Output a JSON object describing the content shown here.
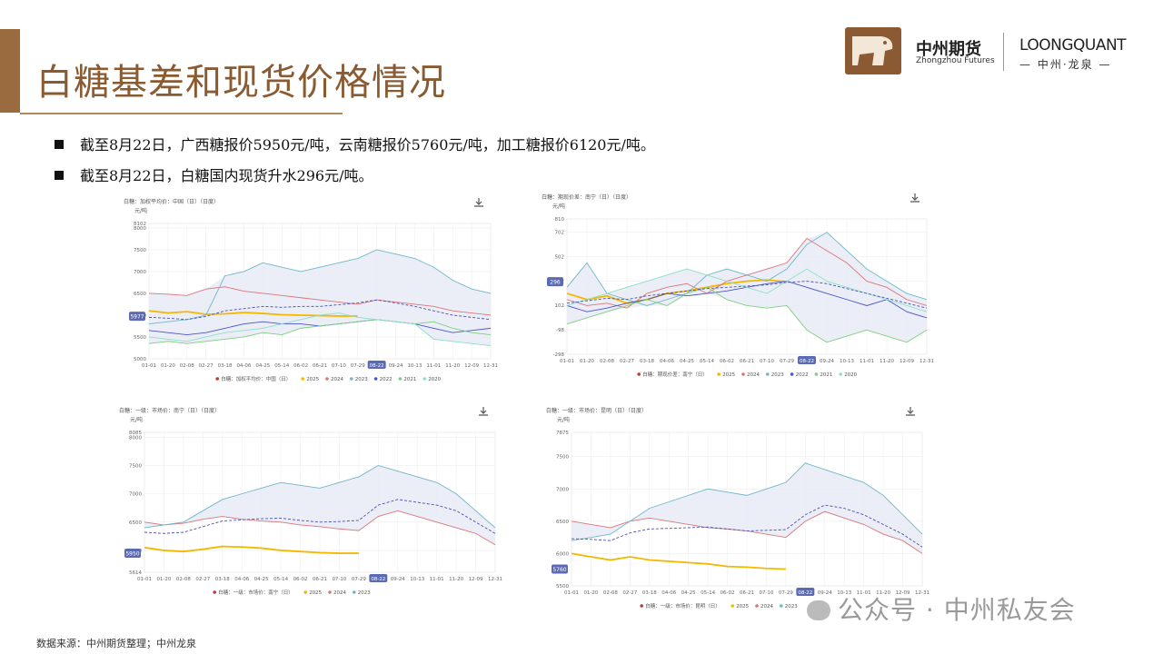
{
  "title": "白糖基差和现货价格情况",
  "logo": {
    "cn": "中州期货",
    "en": "Zhongzhou Futures",
    "lq": "LOONGQUANT",
    "lq_sub": "— 中州·龙泉 —"
  },
  "bullets": [
    "截至8月22日，广西糖报价5950元/吨，云南糖报价5760元/吨，加工糖报价6120元/吨。",
    "截至8月22日，白糖国内现货升水296元/吨。"
  ],
  "footer": "数据来源：中州期货整理；中州龙泉",
  "watermark": "公众号 · 中州私友会",
  "icons": {
    "download": "download-icon",
    "watermark": "wechat-icon",
    "logo": "cheetah-logo"
  },
  "colors": {
    "y2025": "#f5b800",
    "y2024": "#d9767a",
    "y2023": "#6fb7c9",
    "y2022": "#4a55c8",
    "y2021": "#7ccf7c",
    "y2020": "#8ce0c8",
    "band": "#e6eaf5",
    "marker": "#5b6ab5"
  },
  "chart_data": [
    {
      "type": "line",
      "title": "白糖：加权平均价：中国（日）（日度）",
      "ylabel": "元/吨",
      "ylim": [
        5000,
        8102
      ],
      "yticks": [
        5000,
        5500,
        6000,
        6500,
        7000,
        7500,
        8000,
        8102
      ],
      "xticks": [
        "01-01",
        "01-20",
        "02-08",
        "02-27",
        "03-18",
        "04-06",
        "04-25",
        "05-14",
        "06-02",
        "06-21",
        "07-10",
        "07-29",
        "08-22",
        "09-24",
        "10-13",
        "11-01",
        "11-20",
        "12-09",
        "12-31"
      ],
      "current_label": "5977",
      "current_date": "08-22",
      "legend": [
        "白糖：加权平均价：中国（日）",
        "2025",
        "2024",
        "2023",
        "2022",
        "2021",
        "2020"
      ],
      "series": [
        {
          "name": "2025",
          "values": [
            6100,
            6050,
            6080,
            6020,
            6030,
            6060,
            6040,
            6010,
            6000,
            5990,
            5980,
            5977
          ]
        },
        {
          "name": "2024",
          "values": [
            6500,
            6480,
            6450,
            6600,
            6650,
            6550,
            6500,
            6450,
            6400,
            6350,
            6300,
            6250,
            6350,
            6300,
            6250,
            6200,
            6100,
            6050,
            6000
          ]
        },
        {
          "name": "2023",
          "values": [
            5800,
            5850,
            5900,
            6000,
            6900,
            7000,
            7200,
            7100,
            7000,
            7100,
            7200,
            7300,
            7500,
            7400,
            7300,
            7100,
            6800,
            6600,
            6500
          ]
        },
        {
          "name": "2022",
          "values": [
            5650,
            5600,
            5550,
            5600,
            5700,
            5800,
            5850,
            5800,
            5800,
            5750,
            5800,
            5850,
            5900,
            5850,
            5800,
            5700,
            5600,
            5650,
            5700
          ]
        },
        {
          "name": "2021",
          "values": [
            5350,
            5400,
            5350,
            5400,
            5450,
            5500,
            5600,
            5550,
            5700,
            5750,
            5800,
            5850,
            5900,
            5850,
            5800,
            5850,
            5700,
            5600,
            5550
          ]
        },
        {
          "name": "2020",
          "values": [
            5500,
            5450,
            5400,
            5500,
            5600,
            5650,
            5700,
            5800,
            5900,
            6000,
            6050,
            5950,
            5900,
            5850,
            5800,
            5450,
            5400,
            5350,
            5300
          ]
        },
        {
          "name": "mean",
          "values": [
            5950,
            5930,
            5900,
            5970,
            6100,
            6150,
            6200,
            6180,
            6200,
            6200,
            6240,
            6280,
            6350,
            6280,
            6200,
            6100,
            6000,
            5950,
            5900
          ]
        }
      ]
    },
    {
      "type": "line",
      "title": "白糖：期现价差：南宁（日）（日度）",
      "ylabel": "元/吨",
      "ylim": [
        -298,
        810
      ],
      "yticks": [
        -298,
        -98,
        102,
        302,
        502,
        702,
        810
      ],
      "xticks": [
        "01-01",
        "01-20",
        "02-08",
        "02-27",
        "03-18",
        "04-06",
        "04-25",
        "05-14",
        "06-02",
        "06-21",
        "07-10",
        "07-29",
        "08-22",
        "09-24",
        "10-13",
        "11-01",
        "11-20",
        "12-09",
        "12-31"
      ],
      "current_label": "296",
      "current_date": "08-22",
      "legend": [
        "白糖：期现价差：南宁（日）",
        "2025",
        "2024",
        "2023",
        "2022",
        "2021",
        "2020"
      ],
      "series": [
        {
          "name": "2025",
          "values": [
            200,
            150,
            180,
            120,
            150,
            200,
            220,
            250,
            280,
            300,
            310,
            296
          ]
        },
        {
          "name": "2024",
          "values": [
            150,
            100,
            120,
            80,
            200,
            250,
            280,
            200,
            300,
            350,
            400,
            450,
            650,
            550,
            450,
            300,
            250,
            150,
            100
          ]
        },
        {
          "name": "2023",
          "values": [
            250,
            450,
            200,
            150,
            100,
            150,
            200,
            350,
            400,
            350,
            300,
            400,
            600,
            700,
            550,
            400,
            300,
            200,
            150
          ]
        },
        {
          "name": "2022",
          "values": [
            100,
            50,
            80,
            120,
            150,
            200,
            180,
            200,
            220,
            250,
            280,
            300,
            250,
            200,
            150,
            100,
            150,
            50,
            0
          ]
        },
        {
          "name": "2021",
          "values": [
            -50,
            0,
            50,
            100,
            150,
            100,
            200,
            250,
            150,
            100,
            80,
            100,
            -100,
            -200,
            -150,
            -100,
            -150,
            -200,
            -100
          ]
        },
        {
          "name": "2020",
          "values": [
            100,
            150,
            200,
            250,
            300,
            350,
            400,
            350,
            300,
            250,
            200,
            300,
            400,
            300,
            250,
            200,
            150,
            100,
            50
          ]
        },
        {
          "name": "mean",
          "values": [
            120,
            140,
            160,
            150,
            180,
            200,
            220,
            240,
            250,
            260,
            270,
            290,
            300,
            280,
            240,
            200,
            160,
            120,
            80
          ]
        }
      ]
    },
    {
      "type": "line",
      "title": "白糖：一级：市场价：南宁（日）（日度）",
      "ylabel": "元/吨",
      "ylim": [
        5614,
        8085
      ],
      "yticks": [
        5614,
        6000,
        6500,
        7000,
        7500,
        8000,
        8085
      ],
      "xticks": [
        "01-01",
        "01-20",
        "02-08",
        "02-27",
        "03-18",
        "04-06",
        "04-25",
        "05-14",
        "06-02",
        "06-21",
        "07-10",
        "07-29",
        "08-22",
        "09-24",
        "10-13",
        "11-01",
        "11-20",
        "12-09",
        "12-31"
      ],
      "current_label": "5950",
      "current_date": "08-22",
      "legend": [
        "白糖：一级：市场价：南宁（日）",
        "2025",
        "2024",
        "2023"
      ],
      "series": [
        {
          "name": "2025",
          "values": [
            6050,
            6000,
            5980,
            6020,
            6070,
            6060,
            6040,
            6000,
            5980,
            5960,
            5950,
            5950
          ]
        },
        {
          "name": "2024",
          "values": [
            6500,
            6450,
            6480,
            6550,
            6600,
            6550,
            6520,
            6500,
            6450,
            6420,
            6380,
            6350,
            6600,
            6700,
            6600,
            6500,
            6400,
            6300,
            6100
          ]
        },
        {
          "name": "2023",
          "values": [
            6400,
            6450,
            6500,
            6700,
            6900,
            7000,
            7100,
            7200,
            7150,
            7100,
            7200,
            7300,
            7500,
            7400,
            7300,
            7200,
            7000,
            6700,
            6400
          ]
        },
        {
          "name": "mean",
          "values": [
            6320,
            6300,
            6320,
            6420,
            6520,
            6540,
            6560,
            6570,
            6530,
            6500,
            6510,
            6530,
            6800,
            6900,
            6850,
            6800,
            6700,
            6500,
            6300
          ]
        }
      ]
    },
    {
      "type": "line",
      "title": "白糖：一级：市场价：昆明（日）（日度）",
      "ylabel": "元/吨",
      "ylim": [
        5500,
        7875
      ],
      "yticks": [
        5500,
        6000,
        6500,
        7000,
        7500,
        7875
      ],
      "xticks": [
        "01-01",
        "01-20",
        "02-08",
        "02-27",
        "03-18",
        "04-06",
        "04-25",
        "05-14",
        "06-02",
        "06-21",
        "07-10",
        "07-29",
        "08-22",
        "09-24",
        "10-13",
        "11-01",
        "11-20",
        "12-09",
        "12-31"
      ],
      "current_label": "5760",
      "current_date": "08-22",
      "legend": [
        "白糖：一级：市场价：昆明（日）",
        "2025",
        "2024",
        "2023"
      ],
      "series": [
        {
          "name": "2025",
          "values": [
            6000,
            5950,
            5900,
            5950,
            5900,
            5880,
            5860,
            5840,
            5800,
            5790,
            5770,
            5760
          ]
        },
        {
          "name": "2024",
          "values": [
            6500,
            6450,
            6400,
            6500,
            6550,
            6500,
            6450,
            6400,
            6380,
            6350,
            6300,
            6250,
            6500,
            6650,
            6550,
            6450,
            6300,
            6200,
            6000
          ]
        },
        {
          "name": "2023",
          "values": [
            6200,
            6250,
            6300,
            6500,
            6700,
            6800,
            6900,
            7000,
            6950,
            6900,
            7000,
            7100,
            7400,
            7300,
            7200,
            7100,
            6900,
            6600,
            6300
          ]
        },
        {
          "name": "mean",
          "values": [
            6230,
            6220,
            6200,
            6320,
            6380,
            6390,
            6400,
            6410,
            6380,
            6350,
            6360,
            6370,
            6600,
            6750,
            6700,
            6600,
            6450,
            6300,
            6100
          ]
        }
      ]
    }
  ]
}
